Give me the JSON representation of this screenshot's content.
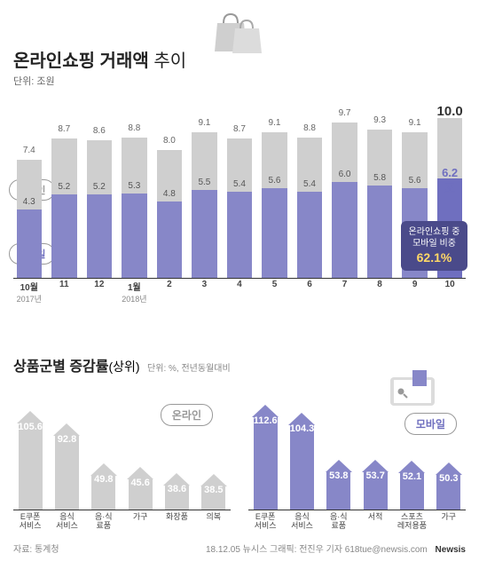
{
  "header_icon": {
    "bag_fill": "#cfcfcf",
    "bag_stroke": "#999"
  },
  "title": {
    "bold": "온라인쇼핑 거래액",
    "light": "추이"
  },
  "unit": "단위: 조원",
  "legend": {
    "online": "온라인",
    "mobile": "모바일"
  },
  "bar_chart": {
    "max_value": 10.5,
    "bar_scale": 18,
    "top_color": "#cfcfcf",
    "bottom_color": "#8787c8",
    "last_bottom_color": "#6f6fbf",
    "months": [
      {
        "x": "10월",
        "xsub": "2017년",
        "total": 7.4,
        "mobile": 4.3
      },
      {
        "x": "11",
        "xsub": "",
        "total": 8.7,
        "mobile": 5.2
      },
      {
        "x": "12",
        "xsub": "",
        "total": 8.6,
        "mobile": 5.2
      },
      {
        "x": "1월",
        "xsub": "2018년",
        "total": 8.8,
        "mobile": 5.3
      },
      {
        "x": "2",
        "xsub": "",
        "total": 8.0,
        "mobile": 4.8
      },
      {
        "x": "3",
        "xsub": "",
        "total": 9.1,
        "mobile": 5.5
      },
      {
        "x": "4",
        "xsub": "",
        "total": 8.7,
        "mobile": 5.4
      },
      {
        "x": "5",
        "xsub": "",
        "total": 9.1,
        "mobile": 5.6
      },
      {
        "x": "6",
        "xsub": "",
        "total": 8.8,
        "mobile": 5.4
      },
      {
        "x": "7",
        "xsub": "",
        "total": 9.7,
        "mobile": 6.0
      },
      {
        "x": "8",
        "xsub": "",
        "total": 9.3,
        "mobile": 5.8
      },
      {
        "x": "9",
        "xsub": "",
        "total": 9.1,
        "mobile": 5.6
      },
      {
        "x": "10",
        "xsub": "",
        "total": 10.0,
        "total_suffix": "조",
        "mobile": 6.2,
        "mobile_suffix": "조",
        "highlight": true
      }
    ]
  },
  "callout": {
    "line1": "온라인쇼핑 중",
    "line2": "모바일 비중",
    "pct": "62.1%",
    "bg": "#4a4a8a",
    "pct_color": "#ffd966"
  },
  "section2": {
    "title_bold": "상품군별 증감률",
    "title_light": "(상위)",
    "unit": "단위: %, 전년동월대비"
  },
  "arrows_online": {
    "label": "온라인",
    "color": "#cfcfcf",
    "head_color": "#cfcfcf",
    "max": 120,
    "scale": 1.05,
    "items": [
      {
        "x1": "E쿠폰",
        "x2": "서비스",
        "v": 105.6
      },
      {
        "x1": "음식",
        "x2": "서비스",
        "v": 92.8
      },
      {
        "x1": "음·식",
        "x2": "료품",
        "v": 49.8
      },
      {
        "x1": "가구",
        "x2": "",
        "v": 45.6
      },
      {
        "x1": "화장품",
        "x2": "",
        "v": 38.6
      },
      {
        "x1": "의복",
        "x2": "",
        "v": 38.5
      }
    ]
  },
  "arrows_mobile": {
    "label": "모바일",
    "color": "#8787c8",
    "head_color": "#8787c8",
    "max": 120,
    "scale": 1.05,
    "items": [
      {
        "x1": "E쿠폰",
        "x2": "서비스",
        "v": 112.6
      },
      {
        "x1": "음식",
        "x2": "서비스",
        "v": 104.3
      },
      {
        "x1": "음·식",
        "x2": "료품",
        "v": 53.8
      },
      {
        "x1": "서적",
        "x2": "",
        "v": 53.7
      },
      {
        "x1": "스포츠",
        "x2": "레저용품",
        "v": 52.1
      },
      {
        "x1": "가구",
        "x2": "",
        "v": 50.3
      }
    ]
  },
  "footer": {
    "left": "자료: 통계청",
    "right": "18.12.05  뉴시스 그래픽: 전진우 기자 618tue@newsis.com"
  },
  "logo": "Newsis"
}
